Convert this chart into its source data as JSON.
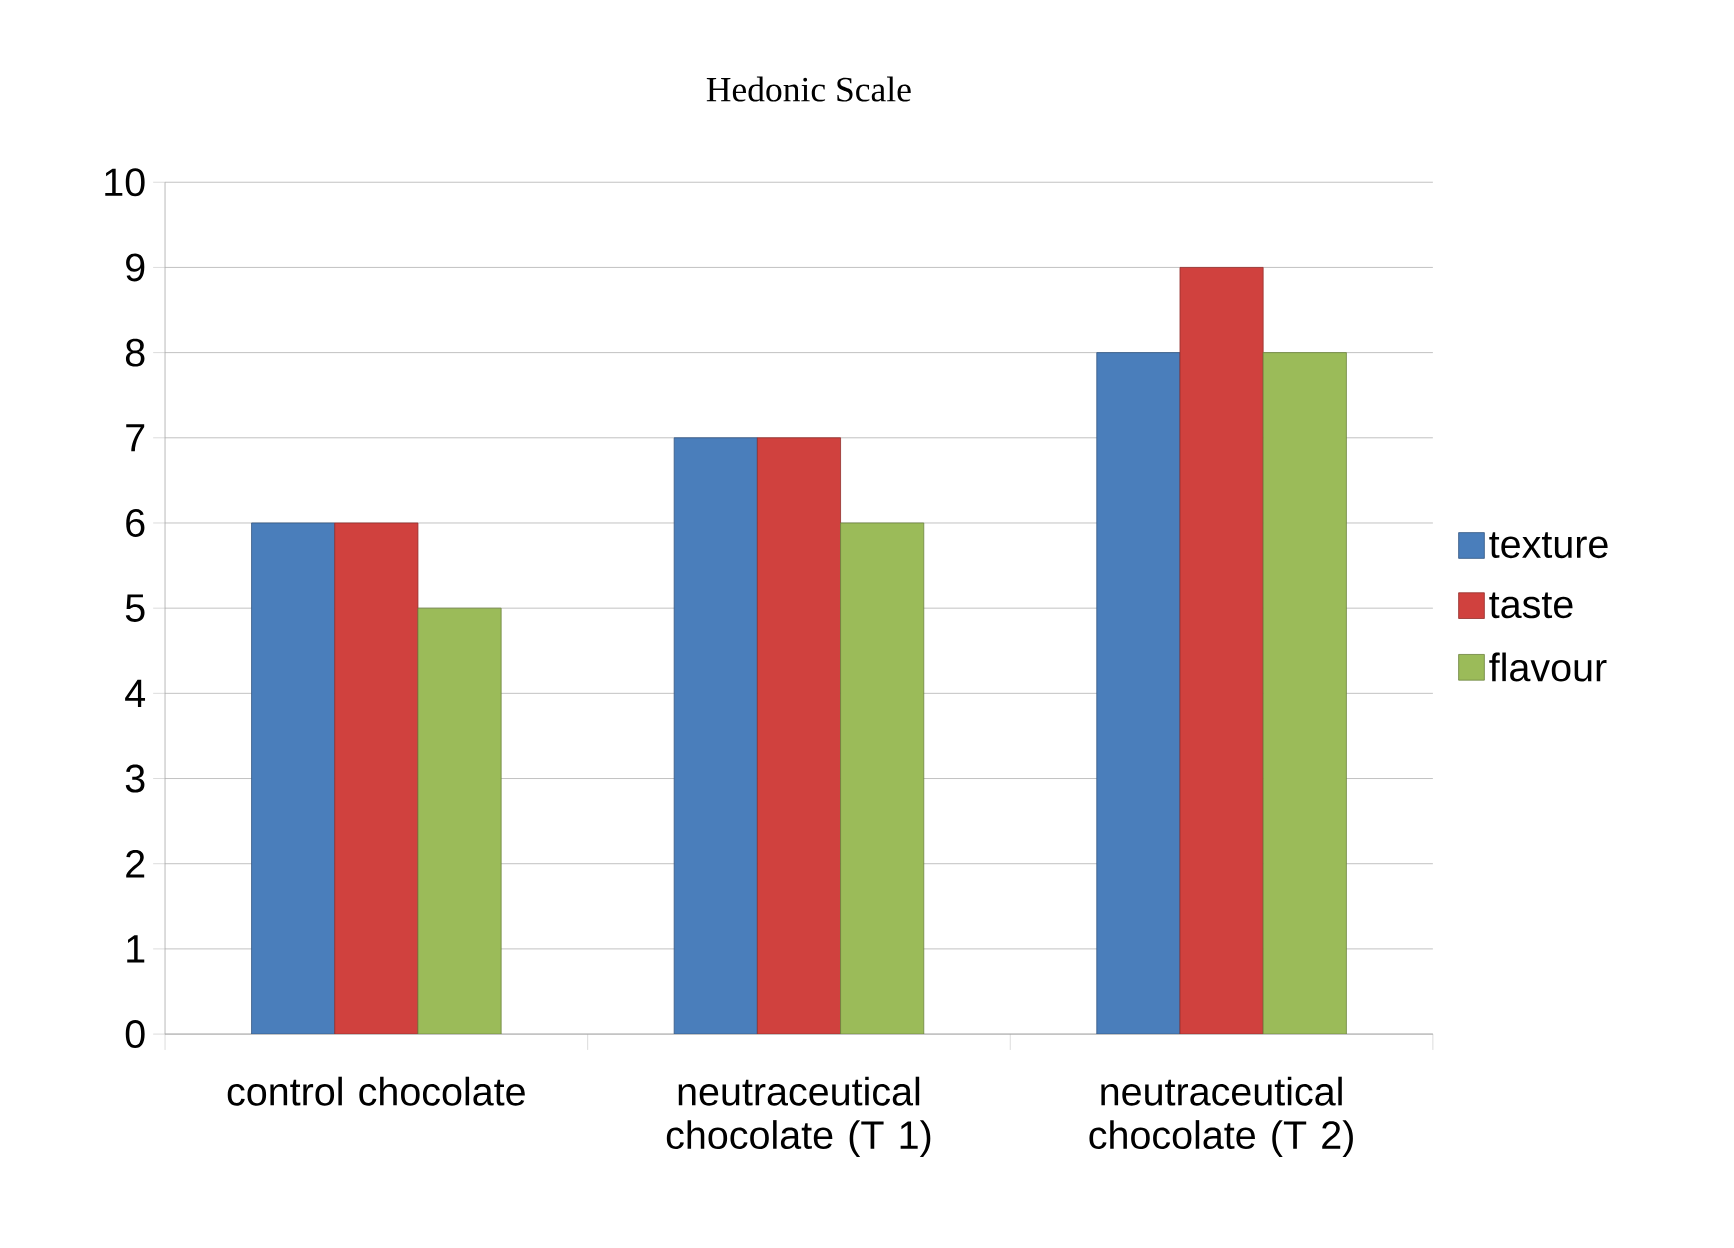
{
  "chart_data": {
    "type": "bar",
    "title": "Hedonic Scale",
    "categories": [
      "control chocolate",
      "neutraceutical chocolate (T 1)",
      "neutraceutical chocolate (T 2)"
    ],
    "series": [
      {
        "name": "texture",
        "color": "#4a7ebb",
        "values": [
          6,
          7,
          8
        ]
      },
      {
        "name": "taste",
        "color": "#d0413e",
        "values": [
          6,
          7,
          9
        ]
      },
      {
        "name": "flavour",
        "color": "#9bbb59",
        "values": [
          5,
          6,
          8
        ]
      }
    ],
    "ylim": [
      0,
      10
    ],
    "yticks": [
      0,
      1,
      2,
      3,
      4,
      5,
      6,
      7,
      8,
      9,
      10
    ],
    "grid": "y",
    "legend": "right"
  }
}
